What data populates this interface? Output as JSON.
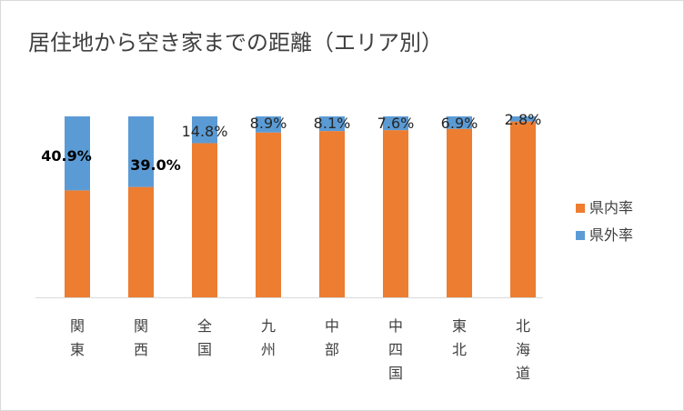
{
  "chart_data": {
    "type": "bar",
    "stacked": true,
    "percent_stacked": true,
    "title": "居住地から空き家までの距離（エリア別）",
    "categories": [
      "関東",
      "関西",
      "全国",
      "九州",
      "中部",
      "中四国",
      "東北",
      "北海道"
    ],
    "series": [
      {
        "name": "県内率",
        "color": "#ed7d31",
        "values": [
          59.1,
          61.0,
          85.2,
          91.1,
          91.9,
          92.4,
          93.1,
          97.2
        ]
      },
      {
        "name": "県外率",
        "color": "#5b9bd5",
        "values": [
          40.9,
          39.0,
          14.8,
          8.9,
          8.1,
          7.6,
          6.9,
          2.8
        ]
      }
    ],
    "data_labels": [
      "40.9%",
      "39.0%",
      "14.8%",
      "8.9%",
      "8.1%",
      "7.6%",
      "6.9%",
      "2.8%"
    ],
    "ylim": [
      0,
      100
    ],
    "grid": false,
    "legend_position": "right"
  }
}
